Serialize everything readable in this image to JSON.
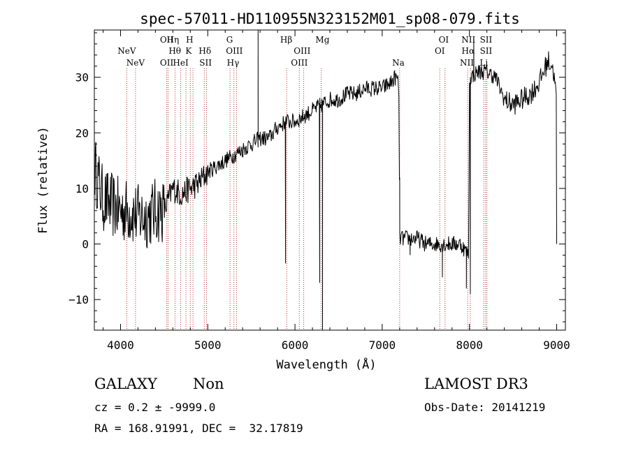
{
  "chart_data": {
    "type": "line",
    "title": "spec-57011-HD110955N323152M01_sp08-079.fits",
    "xlabel": "Wavelength (Å)",
    "ylabel": "Flux (relative)",
    "xlim": [
      3700,
      9100
    ],
    "ylim": [
      -15.5,
      38.5
    ],
    "x_ticks": [
      4000,
      5000,
      6000,
      7000,
      8000,
      9000
    ],
    "y_ticks": [
      -10,
      0,
      10,
      20,
      30
    ],
    "spectrum_knots": {
      "x": [
        3700,
        3800,
        3900,
        4000,
        4100,
        4200,
        4300,
        4400,
        4500,
        4550,
        4600,
        4700,
        4800,
        4900,
        5000,
        5100,
        5200,
        5300,
        5400,
        5500,
        5600,
        5700,
        5800,
        5900,
        6000,
        6100,
        6200,
        6300,
        6400,
        6500,
        6600,
        6700,
        6800,
        6900,
        7000,
        7100,
        7150,
        7190,
        7200,
        7210,
        7300,
        7400,
        7500,
        7600,
        7700,
        7800,
        7900,
        7990,
        8000,
        8010,
        8100,
        8200,
        8300,
        8400,
        8500,
        8600,
        8700,
        8800,
        8850,
        8900,
        8950,
        9000
      ],
      "y": [
        14,
        8,
        7,
        6,
        6,
        5,
        5,
        6,
        6,
        8,
        10,
        9,
        10,
        11,
        13,
        14,
        15,
        16,
        17,
        18,
        19,
        19,
        21,
        22,
        22,
        23,
        24,
        25,
        26,
        26,
        27,
        27,
        28,
        28,
        28,
        29,
        30,
        29,
        2,
        1,
        1,
        1,
        0,
        0,
        0,
        0,
        0,
        -2,
        28,
        30,
        31,
        31,
        30,
        26,
        25,
        26,
        27,
        29,
        31,
        33,
        32,
        27
      ]
    },
    "absorption_features": [
      {
        "x": 5892,
        "y": -3.5
      },
      {
        "x": 6283,
        "y": -7
      },
      {
        "x": 6316,
        "y": -15.5
      },
      {
        "x": 7200,
        "y": 12
      },
      {
        "x": 7320,
        "y": -2
      },
      {
        "x": 7690,
        "y": -6
      },
      {
        "x": 7965,
        "y": -8
      },
      {
        "x": 8010,
        "y": -9
      }
    ],
    "emission_features": [
      {
        "x": 5577,
        "y": 38.5
      },
      {
        "x": 8050,
        "y": 37
      }
    ],
    "line_markers": [
      {
        "label": "NeV",
        "wavelength": 4072,
        "row": 1
      },
      {
        "label": "NeV",
        "wavelength": 4172,
        "row": 0
      },
      {
        "label": "OII",
        "wavelength": 4530,
        "row": 2
      },
      {
        "label": "OII",
        "wavelength": 4530,
        "row": 0
      },
      {
        "label": "Hη",
        "wavelength": 4600,
        "row": 2
      },
      {
        "label": "Hθ",
        "wavelength": 4623,
        "row": 1
      },
      {
        "label": "HeI",
        "wavelength": 4690,
        "row": 0
      },
      {
        "label": "H",
        "wavelength": 4792,
        "row": 2
      },
      {
        "label": "K",
        "wavelength": 4780,
        "row": 1
      },
      {
        "label": "Hδ",
        "wavelength": 4968,
        "row": 1
      },
      {
        "label": "SII",
        "wavelength": 4975,
        "row": 0
      },
      {
        "label": "G",
        "wavelength": 5251,
        "row": 2
      },
      {
        "label": "OIII",
        "wavelength": 5305,
        "row": 1
      },
      {
        "label": "Hγ",
        "wavelength": 5290,
        "row": 0
      },
      {
        "label": "Hβ",
        "wavelength": 5900,
        "row": 2
      },
      {
        "label": "OIII",
        "wavelength": 6082,
        "row": 1
      },
      {
        "label": "OIII",
        "wavelength": 6050,
        "row": 0
      },
      {
        "label": "Mg",
        "wavelength": 6315,
        "row": 2
      },
      {
        "label": "Na",
        "wavelength": 7185,
        "row": 0
      },
      {
        "label": "OI",
        "wavelength": 7705,
        "row": 2
      },
      {
        "label": "OI",
        "wavelength": 7660,
        "row": 1
      },
      {
        "label": "NII",
        "wavelength": 7988,
        "row": 2
      },
      {
        "label": "Hα",
        "wavelength": 7985,
        "row": 1
      },
      {
        "label": "NII",
        "wavelength": 7970,
        "row": 0
      },
      {
        "label": "SII",
        "wavelength": 8190,
        "row": 2
      },
      {
        "label": "SII",
        "wavelength": 8190,
        "row": 1
      },
      {
        "label": "Li",
        "wavelength": 8165,
        "row": 0
      }
    ],
    "marker_lines": [
      4072,
      4172,
      4530,
      4545,
      4625,
      4690,
      4750,
      4800,
      4830,
      4960,
      4985,
      5255,
      5300,
      5330,
      5905,
      6050,
      6100,
      6300,
      7200,
      7660,
      7720,
      7980,
      8010,
      8165,
      8185,
      8200
    ],
    "line_color": "#000000",
    "marker_color": "#b0302a"
  },
  "info": {
    "object_class": "GALAXY",
    "subclass": "Non",
    "survey": "LAMOST DR3",
    "redshift_line": "cz = 0.2 ± -9999.0",
    "obs_date_line": "Obs-Date: 20141219",
    "coords_line": "RA = 168.91991, DEC =  32.17819"
  }
}
